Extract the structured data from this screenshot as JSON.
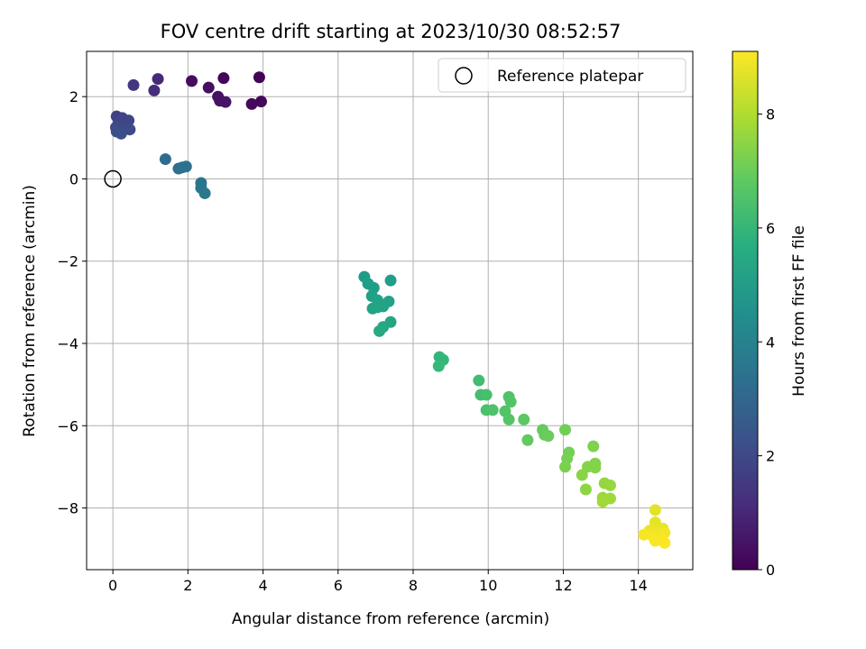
{
  "chart_data": {
    "type": "scatter",
    "title": "FOV centre drift starting at 2023/10/30 08:52:57",
    "xlabel": "Angular distance from reference (arcmin)",
    "ylabel": "Rotation from reference (arcmin)",
    "xlim": [
      -0.7,
      15.45
    ],
    "ylim": [
      -9.5,
      3.1
    ],
    "xticks": [
      0,
      2,
      4,
      6,
      8,
      10,
      12,
      14
    ],
    "yticks": [
      -8,
      -6,
      -4,
      -2,
      0,
      2
    ],
    "grid": true,
    "legend": {
      "placement": "top-right",
      "entries": [
        "Reference platepar"
      ]
    },
    "reference": {
      "x": 0,
      "y": 0,
      "label": "Reference platepar"
    },
    "colorbar": {
      "label": "Hours from first FF file",
      "range": [
        0,
        9.1
      ],
      "ticks": [
        0,
        2,
        4,
        6,
        8
      ],
      "colormap": "viridis"
    },
    "points": [
      {
        "x": 3.9,
        "y": 2.47,
        "c": 0.05
      },
      {
        "x": 2.95,
        "y": 2.45,
        "c": 0.1
      },
      {
        "x": 3.95,
        "y": 1.88,
        "c": 0.15
      },
      {
        "x": 3.7,
        "y": 1.82,
        "c": 0.2
      },
      {
        "x": 2.1,
        "y": 2.38,
        "c": 0.3
      },
      {
        "x": 2.55,
        "y": 2.22,
        "c": 0.35
      },
      {
        "x": 2.8,
        "y": 2.0,
        "c": 0.4
      },
      {
        "x": 2.85,
        "y": 1.9,
        "c": 0.45
      },
      {
        "x": 3.0,
        "y": 1.87,
        "c": 0.5
      },
      {
        "x": 1.2,
        "y": 2.43,
        "c": 1.0
      },
      {
        "x": 1.1,
        "y": 2.15,
        "c": 1.2
      },
      {
        "x": 0.55,
        "y": 2.28,
        "c": 1.5
      },
      {
        "x": 0.1,
        "y": 1.52,
        "c": 1.8
      },
      {
        "x": 0.25,
        "y": 1.48,
        "c": 1.85
      },
      {
        "x": 0.42,
        "y": 1.42,
        "c": 1.9
      },
      {
        "x": 0.15,
        "y": 1.35,
        "c": 1.95
      },
      {
        "x": 0.3,
        "y": 1.3,
        "c": 2.0
      },
      {
        "x": 0.08,
        "y": 1.25,
        "c": 2.05
      },
      {
        "x": 0.45,
        "y": 1.2,
        "c": 2.1
      },
      {
        "x": 0.1,
        "y": 1.15,
        "c": 2.15
      },
      {
        "x": 0.22,
        "y": 1.1,
        "c": 2.2
      },
      {
        "x": 1.4,
        "y": 0.48,
        "c": 3.2
      },
      {
        "x": 1.75,
        "y": 0.25,
        "c": 3.3
      },
      {
        "x": 1.85,
        "y": 0.28,
        "c": 3.35
      },
      {
        "x": 1.95,
        "y": 0.3,
        "c": 3.4
      },
      {
        "x": 2.35,
        "y": -0.1,
        "c": 3.5
      },
      {
        "x": 2.35,
        "y": -0.22,
        "c": 3.55
      },
      {
        "x": 2.45,
        "y": -0.35,
        "c": 3.6
      },
      {
        "x": 6.7,
        "y": -2.38,
        "c": 5.0
      },
      {
        "x": 6.8,
        "y": -2.55,
        "c": 5.05
      },
      {
        "x": 6.95,
        "y": -2.65,
        "c": 5.1
      },
      {
        "x": 7.4,
        "y": -2.47,
        "c": 5.1
      },
      {
        "x": 6.9,
        "y": -2.85,
        "c": 5.15
      },
      {
        "x": 7.05,
        "y": -2.95,
        "c": 5.2
      },
      {
        "x": 7.35,
        "y": -2.98,
        "c": 5.2
      },
      {
        "x": 7.2,
        "y": -3.1,
        "c": 5.25
      },
      {
        "x": 6.92,
        "y": -3.15,
        "c": 5.25
      },
      {
        "x": 7.05,
        "y": -3.12,
        "c": 5.3
      },
      {
        "x": 7.4,
        "y": -3.48,
        "c": 5.35
      },
      {
        "x": 7.2,
        "y": -3.6,
        "c": 5.4
      },
      {
        "x": 7.1,
        "y": -3.7,
        "c": 5.45
      },
      {
        "x": 8.7,
        "y": -4.33,
        "c": 6.0
      },
      {
        "x": 8.8,
        "y": -4.4,
        "c": 6.0
      },
      {
        "x": 8.68,
        "y": -4.55,
        "c": 6.05
      },
      {
        "x": 9.75,
        "y": -4.9,
        "c": 6.3
      },
      {
        "x": 9.8,
        "y": -5.25,
        "c": 6.35
      },
      {
        "x": 9.95,
        "y": -5.25,
        "c": 6.4
      },
      {
        "x": 9.95,
        "y": -5.62,
        "c": 6.45
      },
      {
        "x": 10.12,
        "y": -5.62,
        "c": 6.5
      },
      {
        "x": 10.55,
        "y": -5.3,
        "c": 6.55
      },
      {
        "x": 10.6,
        "y": -5.42,
        "c": 6.6
      },
      {
        "x": 10.45,
        "y": -5.65,
        "c": 6.6
      },
      {
        "x": 10.55,
        "y": -5.85,
        "c": 6.65
      },
      {
        "x": 10.95,
        "y": -5.85,
        "c": 6.75
      },
      {
        "x": 11.05,
        "y": -6.35,
        "c": 6.85
      },
      {
        "x": 11.45,
        "y": -6.1,
        "c": 6.9
      },
      {
        "x": 11.5,
        "y": -6.22,
        "c": 6.95
      },
      {
        "x": 11.6,
        "y": -6.25,
        "c": 7.0
      },
      {
        "x": 12.05,
        "y": -6.1,
        "c": 7.1
      },
      {
        "x": 12.15,
        "y": -6.65,
        "c": 7.15
      },
      {
        "x": 12.1,
        "y": -6.8,
        "c": 7.2
      },
      {
        "x": 12.05,
        "y": -7.0,
        "c": 7.25
      },
      {
        "x": 12.8,
        "y": -6.5,
        "c": 7.3
      },
      {
        "x": 12.85,
        "y": -6.92,
        "c": 7.35
      },
      {
        "x": 12.65,
        "y": -7.0,
        "c": 7.4
      },
      {
        "x": 12.85,
        "y": -7.02,
        "c": 7.4
      },
      {
        "x": 12.5,
        "y": -7.2,
        "c": 7.45
      },
      {
        "x": 12.6,
        "y": -7.55,
        "c": 7.5
      },
      {
        "x": 13.1,
        "y": -7.4,
        "c": 7.6
      },
      {
        "x": 13.25,
        "y": -7.45,
        "c": 7.65
      },
      {
        "x": 13.05,
        "y": -7.75,
        "c": 7.7
      },
      {
        "x": 13.25,
        "y": -7.77,
        "c": 7.75
      },
      {
        "x": 13.05,
        "y": -7.85,
        "c": 7.8
      },
      {
        "x": 14.45,
        "y": -8.05,
        "c": 8.7
      },
      {
        "x": 14.45,
        "y": -8.35,
        "c": 8.75
      },
      {
        "x": 14.65,
        "y": -8.5,
        "c": 8.8
      },
      {
        "x": 14.3,
        "y": -8.55,
        "c": 8.85
      },
      {
        "x": 14.5,
        "y": -8.6,
        "c": 8.9
      },
      {
        "x": 14.7,
        "y": -8.6,
        "c": 8.95
      },
      {
        "x": 14.15,
        "y": -8.65,
        "c": 9.0
      },
      {
        "x": 14.4,
        "y": -8.7,
        "c": 9.0
      },
      {
        "x": 14.6,
        "y": -8.75,
        "c": 9.05
      },
      {
        "x": 14.45,
        "y": -8.8,
        "c": 9.05
      },
      {
        "x": 14.7,
        "y": -8.85,
        "c": 9.1
      }
    ]
  }
}
